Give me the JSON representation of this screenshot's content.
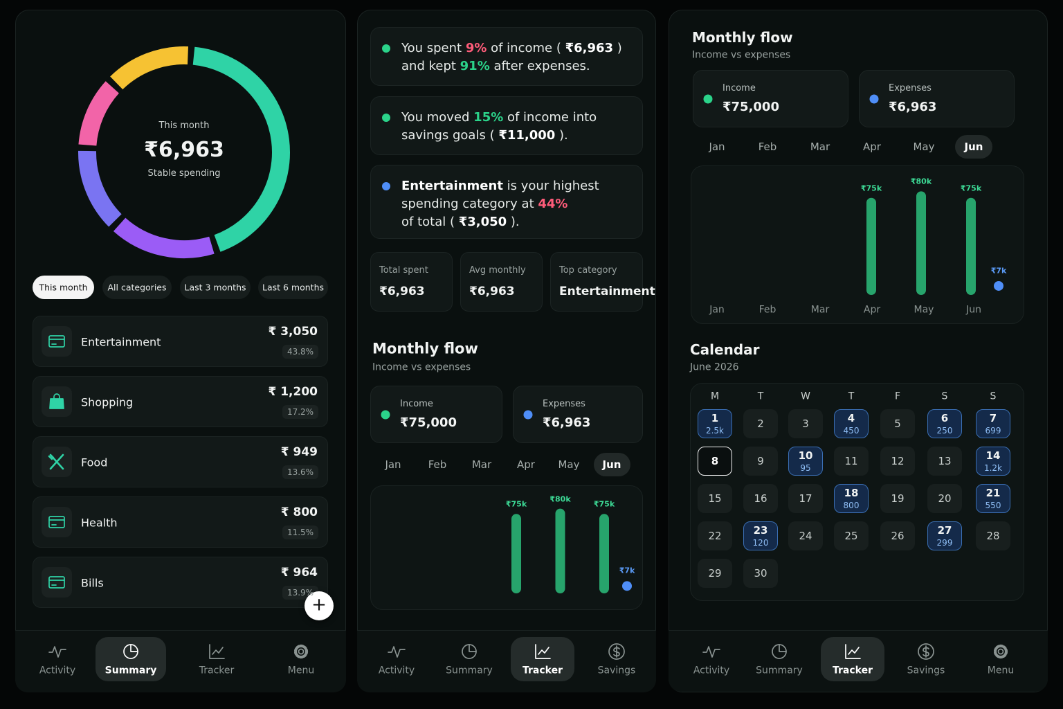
{
  "summary_screen": {
    "donut": {
      "caption": "This month",
      "total": "₹6,963",
      "status": "Stable spending"
    },
    "filters": {
      "items": [
        "This month",
        "All categories",
        "Last 3 months",
        "Last 6 months"
      ],
      "active": 0
    },
    "categories": [
      {
        "name": "Entertainment",
        "amount": "₹ 3,050",
        "share": {
          "value": 43.8,
          "label": "43.8%"
        },
        "color": "#2fd3a6",
        "icon": "card"
      },
      {
        "name": "Shopping",
        "amount": "₹ 1,200",
        "share": {
          "value": 17.2,
          "label": "17.2%"
        },
        "color": "#9b5cf6",
        "icon": "bag"
      },
      {
        "name": "Food",
        "amount": "₹ 949",
        "share": {
          "value": 13.6,
          "label": "13.6%"
        },
        "color": "#7a74f2",
        "icon": "utensils"
      },
      {
        "name": "Health",
        "amount": "₹ 800",
        "share": {
          "value": 11.5,
          "label": "11.5%"
        },
        "color": "#f264a8",
        "icon": "card"
      },
      {
        "name": "Bills",
        "amount": "₹ 964",
        "share": {
          "value": 13.9,
          "label": "13.9%"
        },
        "color": "#f6c233",
        "icon": "card"
      }
    ],
    "fab": "+",
    "nav": {
      "items": [
        {
          "label": "Activity",
          "icon": "pulse"
        },
        {
          "label": "Summary",
          "icon": "pie"
        },
        {
          "label": "Tracker",
          "icon": "chart"
        },
        {
          "label": "Menu",
          "icon": "gear"
        }
      ],
      "active": 1
    }
  },
  "insights_screen": {
    "insights": [
      {
        "dot": "#2bd38a",
        "lines": [
          [
            {
              "text": "You spent "
            },
            {
              "text": "9%",
              "color": "#ff5c7a"
            },
            {
              "text": " of income ( "
            },
            {
              "text": "₹6,963",
              "bold": true
            },
            {
              "text": " )"
            }
          ],
          [
            {
              "text": "and kept "
            },
            {
              "text": "91%",
              "color": "#2bd38a"
            },
            {
              "text": " after expenses."
            }
          ]
        ]
      },
      {
        "dot": "#2bd38a",
        "lines": [
          [
            {
              "text": "You moved "
            },
            {
              "text": "15%",
              "color": "#2bd38a"
            },
            {
              "text": " of income into"
            }
          ],
          [
            {
              "text": "savings goals ( "
            },
            {
              "text": "₹11,000",
              "bold": true
            },
            {
              "text": " )."
            }
          ]
        ]
      },
      {
        "dot": "#4f8ef7",
        "lines": [
          [
            {
              "text": "Entertainment",
              "bold": true
            },
            {
              "text": " is your highest"
            }
          ],
          [
            {
              "text": "spending category at "
            },
            {
              "text": "44%",
              "color": "#ff5c7a"
            }
          ],
          [
            {
              "text": "of total ( "
            },
            {
              "text": "₹3,050",
              "bold": true
            },
            {
              "text": " )."
            }
          ]
        ]
      }
    ],
    "stats": [
      {
        "label": "Total spent",
        "value": "₹6,963"
      },
      {
        "label": "Avg monthly",
        "value": "₹6,963"
      },
      {
        "label": "Top category",
        "value": "Entertainment"
      }
    ],
    "flow": {
      "title": "Monthly flow",
      "subtitle": "Income vs expenses",
      "income": {
        "label": "Income",
        "value": "₹75,000",
        "color": "#2bd38a"
      },
      "expenses": {
        "label": "Expenses",
        "value": "₹6,963",
        "color": "#4f8ef7"
      },
      "months": {
        "items": [
          "Jan",
          "Feb",
          "Mar",
          "Apr",
          "May",
          "Jun"
        ],
        "active": 5
      },
      "chart": {
        "type": "bar",
        "ylim": [
          0,
          85000
        ],
        "series": [
          {
            "color": "#27a46c",
            "values": [
              null,
              null,
              null,
              75000,
              80000,
              75000
            ],
            "value_labels": [
              null,
              null,
              null,
              "₹75k",
              "₹80k",
              "₹75k"
            ]
          },
          {
            "type": "scatter",
            "color": "#4f8ef7",
            "values": [
              null,
              null,
              null,
              null,
              null,
              6963
            ],
            "value_labels": [
              null,
              null,
              null,
              null,
              null,
              "₹7k"
            ]
          }
        ]
      }
    },
    "nav": {
      "items": [
        {
          "label": "Activity",
          "icon": "pulse"
        },
        {
          "label": "Summary",
          "icon": "pie"
        },
        {
          "label": "Tracker",
          "icon": "chart"
        },
        {
          "label": "Savings",
          "icon": "dollar"
        }
      ],
      "active": 2
    }
  },
  "flow_screen": {
    "flow": {
      "title": "Monthly flow",
      "subtitle": "Income vs expenses",
      "income": {
        "label": "Income",
        "value": "₹75,000",
        "color": "#2bd38a"
      },
      "expenses": {
        "label": "Expenses",
        "value": "₹6,963",
        "color": "#4f8ef7"
      },
      "months": {
        "items": [
          "Jan",
          "Feb",
          "Mar",
          "Apr",
          "May",
          "Jun"
        ],
        "active": 5
      },
      "chart": {
        "type": "bar",
        "categories": [
          "Jan",
          "Feb",
          "Mar",
          "Apr",
          "May",
          "Jun"
        ],
        "ylim": [
          0,
          85000
        ],
        "series": [
          {
            "color": "#27a46c",
            "values": [
              null,
              null,
              null,
              75000,
              80000,
              75000
            ],
            "value_labels": [
              null,
              null,
              null,
              "₹75k",
              "₹80k",
              "₹75k"
            ]
          },
          {
            "type": "scatter",
            "color": "#4f8ef7",
            "values": [
              null,
              null,
              null,
              null,
              null,
              6963
            ],
            "value_labels": [
              null,
              null,
              null,
              null,
              null,
              "₹7k"
            ]
          }
        ]
      }
    },
    "calendar": {
      "title": "Calendar",
      "month": "June 2026",
      "weekdays": [
        "M",
        "T",
        "W",
        "T",
        "F",
        "S",
        "S"
      ],
      "days": [
        {
          "day": 1,
          "amount": "2.5k"
        },
        {
          "day": 2
        },
        {
          "day": 3
        },
        {
          "day": 4,
          "amount": "450"
        },
        {
          "day": 5
        },
        {
          "day": 6,
          "amount": "250"
        },
        {
          "day": 7,
          "amount": "699"
        },
        {
          "day": 8,
          "today": true
        },
        {
          "day": 9
        },
        {
          "day": 10,
          "amount": "95"
        },
        {
          "day": 11
        },
        {
          "day": 12
        },
        {
          "day": 13
        },
        {
          "day": 14,
          "amount": "1.2k"
        },
        {
          "day": 15
        },
        {
          "day": 16
        },
        {
          "day": 17
        },
        {
          "day": 18,
          "amount": "800"
        },
        {
          "day": 19
        },
        {
          "day": 20
        },
        {
          "day": 21,
          "amount": "550"
        },
        {
          "day": 22
        },
        {
          "day": 23,
          "amount": "120"
        },
        {
          "day": 24
        },
        {
          "day": 25
        },
        {
          "day": 26
        },
        {
          "day": 27,
          "amount": "299"
        },
        {
          "day": 28
        },
        {
          "day": 29
        },
        {
          "day": 30
        }
      ]
    },
    "nav": {
      "items": [
        {
          "label": "Activity",
          "icon": "pulse"
        },
        {
          "label": "Summary",
          "icon": "pie"
        },
        {
          "label": "Tracker",
          "icon": "chart"
        },
        {
          "label": "Savings",
          "icon": "dollar"
        },
        {
          "label": "Menu",
          "icon": "gear"
        }
      ],
      "active": 2
    }
  }
}
